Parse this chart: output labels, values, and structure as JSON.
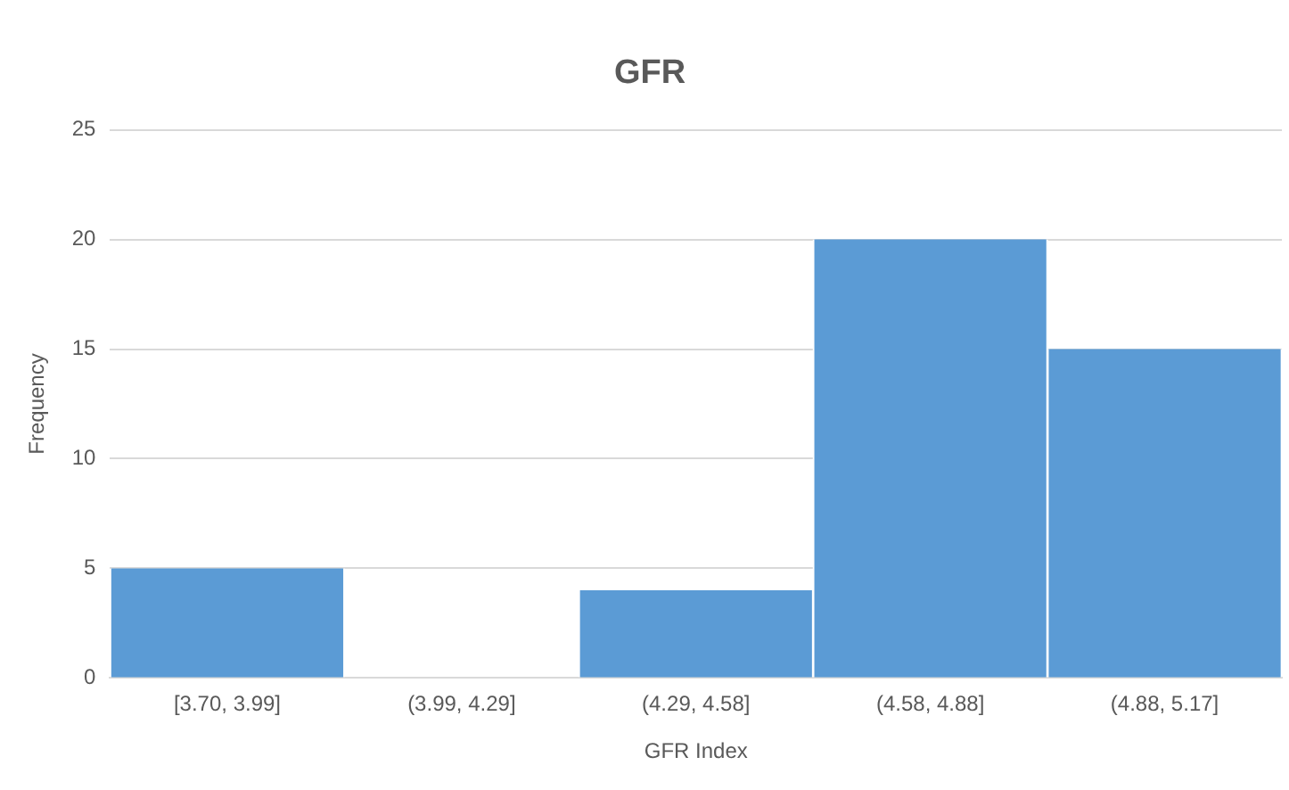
{
  "chart_data": {
    "type": "bar",
    "title": "GFR",
    "xlabel": "GFR Index",
    "ylabel": "Frequency",
    "categories": [
      "[3.70, 3.99]",
      "(3.99, 4.29]",
      "(4.29, 4.58]",
      "(4.58, 4.88]",
      "(4.88, 5.17]"
    ],
    "values": [
      5,
      0,
      4,
      20,
      15
    ],
    "color": "#5b9bd5",
    "ylim": [
      0,
      25
    ],
    "yticks": [
      0,
      5,
      10,
      15,
      20,
      25
    ],
    "grid": "y",
    "legend": false
  }
}
